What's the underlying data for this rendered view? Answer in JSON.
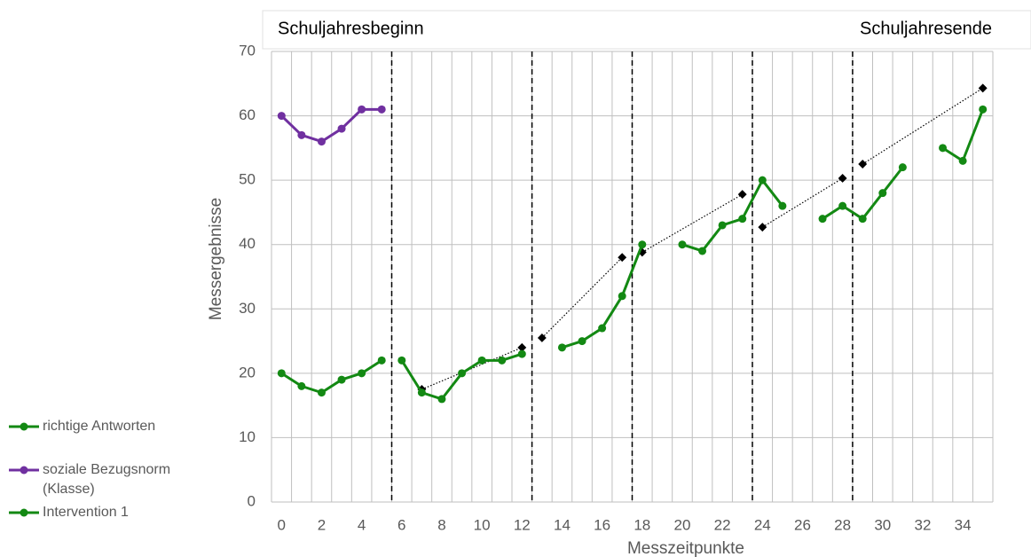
{
  "chart_data": {
    "type": "line",
    "xlabel": "Messzeitpunkte",
    "ylabel": "Messergebnisse",
    "annotations": [
      "Schuljahresbeginn",
      "Schuljahresende"
    ],
    "x": [
      0,
      1,
      2,
      3,
      4,
      5,
      6,
      7,
      8,
      9,
      10,
      11,
      12,
      13,
      14,
      15,
      16,
      17,
      18,
      19,
      20,
      21,
      22,
      23,
      24,
      25,
      26,
      27,
      28,
      29,
      30,
      31,
      32,
      33,
      34,
      35
    ],
    "series": [
      {
        "name": "richtige Antworten",
        "color": "#138913",
        "values": [
          20,
          18,
          17,
          19,
          20,
          22,
          null,
          null,
          null,
          null,
          null,
          null,
          null,
          null,
          null,
          null,
          null,
          null,
          null,
          null,
          null,
          null,
          null,
          null,
          null,
          null,
          null,
          null,
          null,
          null,
          null,
          null,
          null,
          null,
          null,
          null
        ]
      },
      {
        "name": "soziale Bezugsnorm (Klasse)",
        "color": "#7030a0",
        "values": [
          60,
          57,
          56,
          58,
          61,
          61,
          null,
          null,
          null,
          null,
          null,
          null,
          null,
          null,
          null,
          null,
          null,
          null,
          null,
          null,
          null,
          null,
          null,
          null,
          null,
          null,
          null,
          null,
          null,
          null,
          null,
          null,
          null,
          null,
          null,
          null
        ]
      },
      {
        "name": "Intervention 1",
        "color": "#138913",
        "values": [
          null,
          null,
          null,
          null,
          null,
          null,
          22,
          17,
          16,
          20,
          22,
          22,
          23,
          null,
          24,
          25,
          27,
          32,
          40,
          null,
          40,
          39,
          43,
          44,
          50,
          46,
          null,
          44,
          46,
          44,
          48,
          52,
          null,
          55,
          53,
          61
        ]
      }
    ],
    "trendlines": [
      {
        "x": [
          7,
          12
        ],
        "values": [
          17.5,
          24
        ]
      },
      {
        "x": [
          13,
          17
        ],
        "values": [
          25.5,
          38
        ]
      },
      {
        "x": [
          18,
          23
        ],
        "values": [
          38.8,
          47.8
        ]
      },
      {
        "x": [
          24,
          28
        ],
        "values": [
          42.7,
          50.3
        ]
      },
      {
        "x": [
          29,
          35
        ],
        "values": [
          52.5,
          64.3
        ]
      }
    ],
    "phase_lines": [
      5.5,
      12.5,
      17.5,
      23.5,
      28.5
    ],
    "xlim": [
      -0.5,
      35.5
    ],
    "ylim": [
      0,
      70
    ],
    "xticks": [
      0,
      2,
      4,
      6,
      8,
      10,
      12,
      14,
      16,
      18,
      20,
      22,
      24,
      26,
      28,
      30,
      32,
      34
    ],
    "yticks": [
      0,
      10,
      20,
      30,
      40,
      50,
      60,
      70
    ],
    "grid": true
  }
}
